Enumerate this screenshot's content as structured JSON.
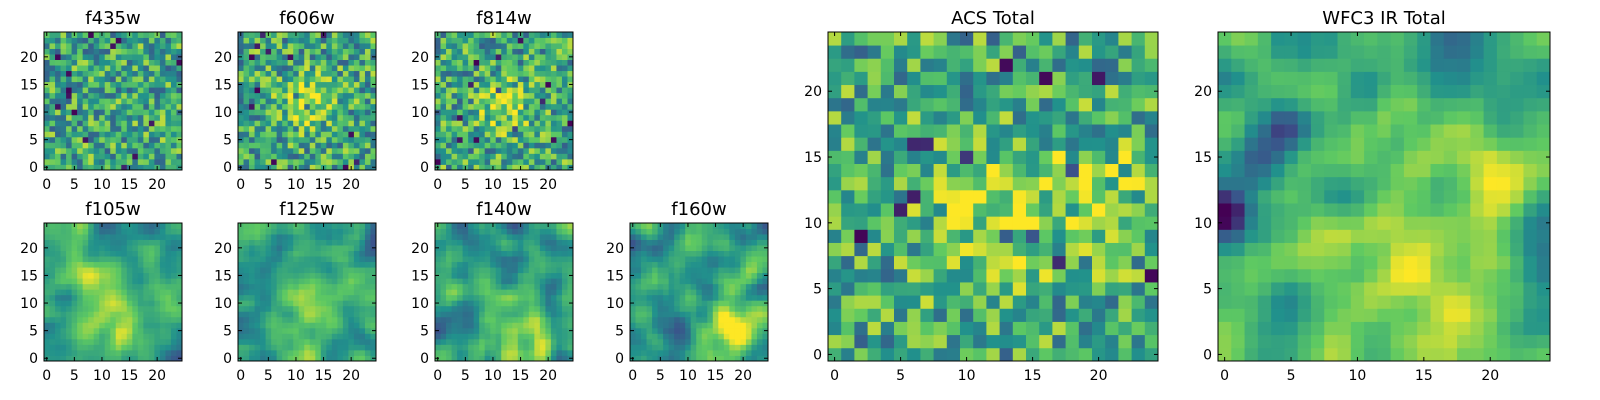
{
  "figure": {
    "description_free": true
  },
  "colormap": {
    "name": "viridis",
    "stops": [
      "#440154",
      "#3b528b",
      "#21918c",
      "#5ec962",
      "#fde725"
    ]
  },
  "chart_data": [
    {
      "type": "heatmap",
      "id": "f435w",
      "title": "f435w",
      "grid_size": 25,
      "xlim": [
        0,
        24
      ],
      "ylim": [
        0,
        24
      ],
      "xticks": [
        0,
        5,
        10,
        15,
        20
      ],
      "yticks": [
        0,
        5,
        10,
        15,
        20
      ],
      "pattern": "noise",
      "seed": 11,
      "blobs": []
    },
    {
      "type": "heatmap",
      "id": "f606w",
      "title": "f606w",
      "grid_size": 25,
      "xlim": [
        0,
        24
      ],
      "ylim": [
        0,
        24
      ],
      "xticks": [
        0,
        5,
        10,
        15,
        20
      ],
      "yticks": [
        0,
        5,
        10,
        15,
        20
      ],
      "pattern": "noise",
      "seed": 23,
      "blobs": [
        {
          "x": 12,
          "y": 12,
          "amp": 0.35,
          "sigma": 3
        }
      ]
    },
    {
      "type": "heatmap",
      "id": "f814w",
      "title": "f814w",
      "grid_size": 25,
      "xlim": [
        0,
        24
      ],
      "ylim": [
        0,
        24
      ],
      "xticks": [
        0,
        5,
        10,
        15,
        20
      ],
      "yticks": [
        0,
        5,
        10,
        15,
        20
      ],
      "pattern": "noise",
      "seed": 37,
      "blobs": [
        {
          "x": 12,
          "y": 11,
          "amp": 0.3,
          "sigma": 3
        }
      ]
    },
    {
      "type": "heatmap",
      "id": "f105w",
      "title": "f105w",
      "grid_size": 25,
      "xlim": [
        0,
        24
      ],
      "ylim": [
        0,
        24
      ],
      "xticks": [
        0,
        5,
        10,
        15,
        20
      ],
      "yticks": [
        0,
        5,
        10,
        15,
        20
      ],
      "pattern": "smooth",
      "seed": 41,
      "blobs": [
        {
          "x": 11,
          "y": 11,
          "amp": 0.3,
          "sigma": 4
        },
        {
          "x": 15,
          "y": 5,
          "amp": 0.2,
          "sigma": 3
        }
      ]
    },
    {
      "type": "heatmap",
      "id": "f125w",
      "title": "f125w",
      "grid_size": 25,
      "xlim": [
        0,
        24
      ],
      "ylim": [
        0,
        24
      ],
      "xticks": [
        0,
        5,
        10,
        15,
        20
      ],
      "yticks": [
        0,
        5,
        10,
        15,
        20
      ],
      "pattern": "smooth",
      "seed": 53,
      "blobs": [
        {
          "x": 14,
          "y": 8,
          "amp": 0.3,
          "sigma": 4
        }
      ]
    },
    {
      "type": "heatmap",
      "id": "f140w",
      "title": "f140w",
      "grid_size": 25,
      "xlim": [
        0,
        24
      ],
      "ylim": [
        0,
        24
      ],
      "xticks": [
        0,
        5,
        10,
        15,
        20
      ],
      "yticks": [
        0,
        5,
        10,
        15,
        20
      ],
      "pattern": "smooth",
      "seed": 67,
      "blobs": [
        {
          "x": 16,
          "y": 3,
          "amp": 0.35,
          "sigma": 4
        }
      ]
    },
    {
      "type": "heatmap",
      "id": "f160w",
      "title": "f160w",
      "grid_size": 25,
      "xlim": [
        0,
        24
      ],
      "ylim": [
        0,
        24
      ],
      "xticks": [
        0,
        5,
        10,
        15,
        20
      ],
      "yticks": [
        0,
        5,
        10,
        15,
        20
      ],
      "pattern": "smooth",
      "seed": 79,
      "blobs": [
        {
          "x": 18,
          "y": 4,
          "amp": 0.35,
          "sigma": 4
        }
      ]
    },
    {
      "type": "heatmap",
      "id": "acs-total",
      "title": "ACS Total",
      "grid_size": 25,
      "xlim": [
        0,
        24
      ],
      "ylim": [
        0,
        24
      ],
      "xticks": [
        0,
        5,
        10,
        15,
        20
      ],
      "yticks": [
        0,
        5,
        10,
        15,
        20
      ],
      "pattern": "noise",
      "seed": 97,
      "blobs": [
        {
          "x": 12,
          "y": 11,
          "amp": 0.25,
          "sigma": 4
        },
        {
          "x": 21,
          "y": 12,
          "amp": 0.2,
          "sigma": 3
        }
      ]
    },
    {
      "type": "heatmap",
      "id": "wfc3-ir-total",
      "title": "WFC3 IR Total",
      "grid_size": 25,
      "xlim": [
        0,
        24
      ],
      "ylim": [
        0,
        24
      ],
      "xticks": [
        0,
        5,
        10,
        15,
        20
      ],
      "yticks": [
        0,
        5,
        10,
        15,
        20
      ],
      "pattern": "smooth",
      "seed": 113,
      "blobs": [
        {
          "x": 16,
          "y": 4,
          "amp": 0.4,
          "sigma": 4
        },
        {
          "x": 22,
          "y": 13,
          "amp": 0.3,
          "sigma": 3
        },
        {
          "x": 12,
          "y": 11,
          "amp": 0.2,
          "sigma": 3
        }
      ],
      "holes": [
        {
          "x": 0,
          "y": 11,
          "amp": 0.5,
          "sigma": 1.2
        },
        {
          "x": 5,
          "y": 17,
          "amp": 0.45,
          "sigma": 1.2
        }
      ]
    }
  ]
}
